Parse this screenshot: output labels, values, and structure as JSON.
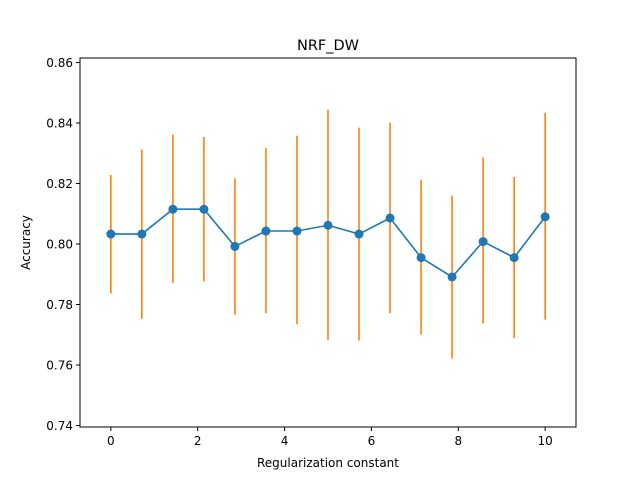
{
  "chart_data": {
    "type": "line",
    "title": "NRF_DW",
    "xlabel": "Regularization constant",
    "ylabel": "Accuracy",
    "xlim": [
      -0.71,
      10.71
    ],
    "ylim": [
      0.7395,
      0.8615
    ],
    "x_ticks": [
      0,
      2,
      4,
      6,
      8,
      10
    ],
    "x_tick_labels": [
      "0",
      "2",
      "4",
      "6",
      "8",
      "10"
    ],
    "y_ticks": [
      0.74,
      0.76,
      0.78,
      0.8,
      0.82,
      0.84,
      0.86
    ],
    "y_tick_labels": [
      "0.74",
      "0.76",
      "0.78",
      "0.80",
      "0.82",
      "0.84",
      "0.86"
    ],
    "grid": false,
    "colors": {
      "line": "#1f77b4",
      "errorbar": "#ff7f0e"
    },
    "series": [
      {
        "x": [
          0,
          0.714,
          1.429,
          2.143,
          2.857,
          3.571,
          4.286,
          5.0,
          5.714,
          6.429,
          7.143,
          7.857,
          8.571,
          9.286,
          10.0
        ],
        "values": [
          0.8033,
          0.8033,
          0.8115,
          0.8115,
          0.7992,
          0.8043,
          0.8043,
          0.8062,
          0.8033,
          0.8086,
          0.7955,
          0.7891,
          0.8008,
          0.7955,
          0.809
        ],
        "err_low": [
          0.7837,
          0.7753,
          0.7871,
          0.7876,
          0.7766,
          0.7771,
          0.7735,
          0.7683,
          0.7681,
          0.7771,
          0.7701,
          0.7621,
          0.7737,
          0.7689,
          0.775
        ],
        "err_high": [
          0.8228,
          0.8312,
          0.8362,
          0.8354,
          0.8217,
          0.8318,
          0.8358,
          0.8444,
          0.8385,
          0.8401,
          0.8213,
          0.816,
          0.8286,
          0.8222,
          0.8434
        ]
      }
    ]
  }
}
